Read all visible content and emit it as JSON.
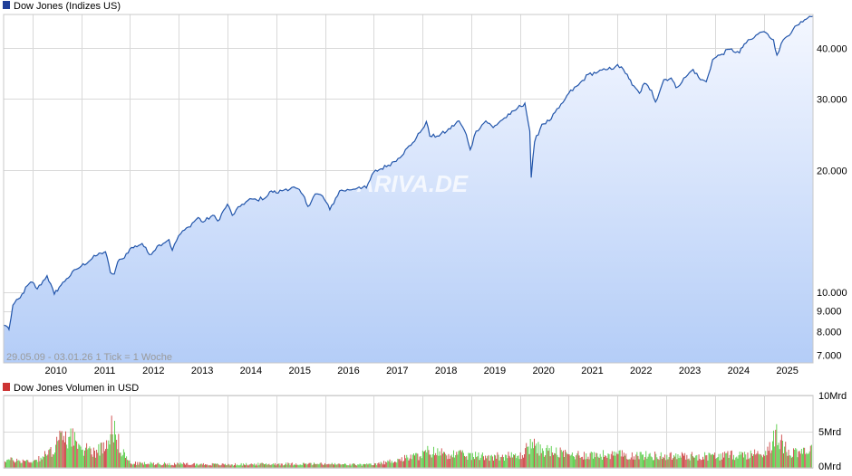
{
  "colors": {
    "line": "#2255aa",
    "area_top": "#f4f7ff",
    "area_bottom": "#b4cdf7",
    "vol_up": "#55cc44",
    "vol_down": "#cc4444",
    "legend_price": "#1f3f99",
    "legend_volume": "#cc3333"
  },
  "chart_data": [
    {
      "type": "line",
      "title": "Dow Jones (Indizes US)",
      "legend": [
        "Dow Jones (Indizes US)"
      ],
      "note": "29.05.09 - 03.01.26    1 Tick = 1 Woche",
      "watermark": "ARIVA.DE",
      "scale": "log",
      "ylim": [
        6700,
        48500
      ],
      "yticks": [
        7000,
        8000,
        9000,
        10000,
        20000,
        30000,
        40000
      ],
      "ytick_labels": [
        "7.000",
        "8.000",
        "9.000",
        "10.000",
        "20.000",
        "30.000",
        "40.000"
      ],
      "xlim": [
        2009.41,
        2026.01
      ],
      "xticks": [
        "2010",
        "2011",
        "2012",
        "2013",
        "2014",
        "2015",
        "2016",
        "2017",
        "2018",
        "2019",
        "2020",
        "2021",
        "2022",
        "2023",
        "2024",
        "2025"
      ],
      "series": [
        {
          "name": "Dow Jones (Indizes US)",
          "x": [
            2009.41,
            2009.5,
            2009.52,
            2009.6,
            2009.75,
            2009.9,
            2010.0,
            2010.1,
            2010.3,
            2010.45,
            2010.55,
            2010.7,
            2010.9,
            2011.0,
            2011.3,
            2011.4,
            2011.5,
            2011.6,
            2011.68,
            2011.75,
            2011.85,
            2012.0,
            2012.25,
            2012.4,
            2012.6,
            2012.8,
            2012.87,
            2013.0,
            2013.2,
            2013.4,
            2013.5,
            2013.7,
            2013.8,
            2014.0,
            2014.1,
            2014.3,
            2014.5,
            2014.6,
            2014.8,
            2014.9,
            2015.0,
            2015.2,
            2015.4,
            2015.55,
            2015.65,
            2015.8,
            2015.95,
            2016.1,
            2016.3,
            2016.5,
            2016.7,
            2016.85,
            2017.0,
            2017.3,
            2017.5,
            2017.8,
            2017.95,
            2018.08,
            2018.15,
            2018.3,
            2018.5,
            2018.75,
            2018.9,
            2018.98,
            2019.1,
            2019.3,
            2019.45,
            2019.6,
            2019.8,
            2019.95,
            2020.1,
            2020.2,
            2020.23,
            2020.3,
            2020.45,
            2020.6,
            2020.8,
            2020.92,
            2021.0,
            2021.2,
            2021.4,
            2021.6,
            2021.8,
            2021.95,
            2022.0,
            2022.2,
            2022.3,
            2022.45,
            2022.55,
            2022.7,
            2022.78,
            2022.95,
            2023.1,
            2023.2,
            2023.4,
            2023.55,
            2023.7,
            2023.82,
            2023.95,
            2024.1,
            2024.3,
            2024.5,
            2024.6,
            2024.8,
            2024.92,
            2025.0,
            2025.2,
            2025.27,
            2025.4,
            2025.6,
            2025.8,
            2026.01
          ],
          "values": [
            8300,
            8200,
            8100,
            9300,
            9700,
            10400,
            10600,
            10200,
            11000,
            9900,
            10300,
            10800,
            11400,
            11600,
            12300,
            12500,
            12600,
            11200,
            11100,
            11900,
            12100,
            12800,
            13200,
            12400,
            13100,
            13500,
            12700,
            13800,
            14500,
            15300,
            14900,
            15500,
            15000,
            16500,
            15500,
            16500,
            17000,
            16900,
            17200,
            17800,
            17600,
            18000,
            18100,
            17400,
            16300,
            17500,
            17300,
            16000,
            17800,
            17900,
            18200,
            18100,
            19800,
            20600,
            21400,
            23400,
            24800,
            26400,
            24300,
            24300,
            25000,
            26500,
            24500,
            22500,
            25000,
            26500,
            25500,
            26500,
            27500,
            28500,
            29300,
            25000,
            19200,
            23500,
            26000,
            26500,
            28500,
            29900,
            31000,
            32500,
            34500,
            35000,
            35500,
            36000,
            36500,
            34500,
            32500,
            31000,
            32800,
            31500,
            29500,
            33500,
            33800,
            32000,
            34000,
            35500,
            33500,
            33100,
            37500,
            38500,
            39800,
            39000,
            41000,
            42500,
            43800,
            44000,
            42000,
            38500,
            42000,
            44500,
            46500,
            48000
          ]
        }
      ]
    },
    {
      "type": "bar",
      "title": "Dow Jones Volumen in USD",
      "legend": [
        "Dow Jones Volumen in USD"
      ],
      "ylim": [
        0,
        10
      ],
      "yticks": [
        0,
        5,
        10
      ],
      "ytick_labels": [
        "0Mrd",
        "5Mrd",
        "10Mrd"
      ],
      "unit": "Mrd USD",
      "xlim": [
        2009.41,
        2026.01
      ],
      "x": [
        2009.5,
        2010.0,
        2010.4,
        2010.5,
        2010.7,
        2010.78,
        2010.8,
        2010.85,
        2010.9,
        2010.95,
        2011.0,
        2011.1,
        2011.3,
        2011.5,
        2011.58,
        2011.62,
        2011.65,
        2011.7,
        2011.8,
        2012.0,
        2013.0,
        2014.0,
        2015.0,
        2016.0,
        2016.5,
        2017.0,
        2018.0,
        2018.1,
        2019.0,
        2020.0,
        2020.2,
        2020.25,
        2020.3,
        2021.0,
        2022.0,
        2023.0,
        2024.0,
        2025.0,
        2025.27,
        2025.32,
        2025.5,
        2026.0
      ],
      "values": [
        1.2,
        1.0,
        2.5,
        4.5,
        4.2,
        5.5,
        5.2,
        4.8,
        3.5,
        2.5,
        2.8,
        3.0,
        2.5,
        3.5,
        5.5,
        8.5,
        6.0,
        5.0,
        3.0,
        0.7,
        0.6,
        0.5,
        0.6,
        0.6,
        0.5,
        0.5,
        2.0,
        2.5,
        1.8,
        1.8,
        3.5,
        4.2,
        3.0,
        2.0,
        2.0,
        1.8,
        1.8,
        2.2,
        5.2,
        4.0,
        2.5,
        2.8
      ]
    }
  ]
}
